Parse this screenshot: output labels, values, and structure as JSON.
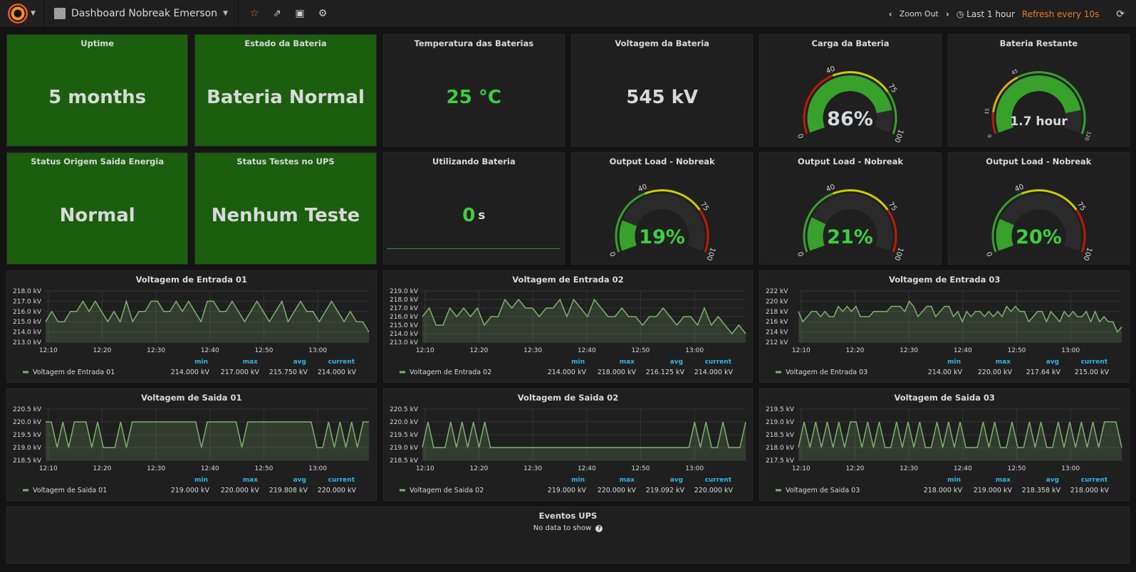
{
  "nav": {
    "dashboard_title": "Dashboard Nobreak Emerson",
    "zoom_out": "Zoom Out",
    "time_range": "Last 1 hour",
    "refresh": "Refresh every 10s"
  },
  "colors": {
    "green_bg": "#1b5e0e",
    "value_green": "#3ecf3e",
    "line": "#7eb26d",
    "red": "#bf1b00",
    "yellow": "#cccc00",
    "orange": "#e5ac0e",
    "accent": "#eb7b18"
  },
  "stats": [
    {
      "title": "Uptime",
      "value": "5 months"
    },
    {
      "title": "Estado da Bateria",
      "value": "Bateria Normal"
    },
    {
      "title": "Temperatura das Baterias",
      "value": "25 °C"
    },
    {
      "title": "Voltagem da Bateria",
      "value": "545 kV"
    },
    {
      "title": "Status Origem Saida Energia",
      "value": "Normal"
    },
    {
      "title": "Status Testes no UPS",
      "value": "Nenhum Teste"
    },
    {
      "title": "Utilizando Bateria",
      "value": "0",
      "suffix": "s"
    }
  ],
  "gauges": [
    {
      "title": "Carga da Bateria",
      "value": 86,
      "display": "86%",
      "min": 0,
      "max": 100,
      "thresholds": [
        40,
        75
      ],
      "thresh_labels": [
        "0",
        "40",
        "75",
        "100"
      ],
      "colors": [
        "#bf1b00",
        "#cccc00",
        "#37a12b"
      ],
      "text_color": "#d8d9da"
    },
    {
      "title": "Bateria Restante",
      "value": 1.7,
      "display": "1.7 hour",
      "min": 0,
      "max": 120,
      "thresholds": [
        15,
        45
      ],
      "thresh_labels": [
        "0",
        "15",
        "45",
        "120"
      ],
      "colors": [
        "#bf1b00",
        "#e5ac0e",
        "#37a12b"
      ],
      "text_color": "#d8d9da",
      "fill_fraction": 0.86
    },
    {
      "title": "Output Load - Nobreak",
      "value": 19,
      "display": "19%",
      "min": 0,
      "max": 100,
      "thresholds": [
        40,
        75
      ],
      "thresh_labels": [
        "0",
        "40",
        "75",
        "100"
      ],
      "colors": [
        "#37a12b",
        "#cccc00",
        "#bf1b00"
      ],
      "text_color": "#3ecf3e"
    },
    {
      "title": "Output Load - Nobreak",
      "value": 21,
      "display": "21%",
      "min": 0,
      "max": 100,
      "thresholds": [
        40,
        75
      ],
      "thresh_labels": [
        "0",
        "40",
        "75",
        "100"
      ],
      "colors": [
        "#37a12b",
        "#cccc00",
        "#bf1b00"
      ],
      "text_color": "#3ecf3e"
    },
    {
      "title": "Output Load - Nobreak",
      "value": 20,
      "display": "20%",
      "min": 0,
      "max": 100,
      "thresholds": [
        40,
        75
      ],
      "thresh_labels": [
        "0",
        "40",
        "75",
        "100"
      ],
      "colors": [
        "#37a12b",
        "#cccc00",
        "#bf1b00"
      ],
      "text_color": "#3ecf3e"
    }
  ],
  "chart_data": [
    {
      "type": "area",
      "title": "Voltagem de Entrada 01",
      "ylim": [
        213,
        218
      ],
      "yticks": [
        "213.0 kV",
        "214.0 kV",
        "215.0 kV",
        "216.0 kV",
        "217.0 kV",
        "218.0 kV"
      ],
      "xticks": [
        "12:10",
        "12:20",
        "12:30",
        "12:40",
        "12:50",
        "13:00"
      ],
      "series": [
        {
          "name": "Voltagem de Entrada 01",
          "values": [
            215,
            216,
            215,
            215,
            216,
            216,
            217,
            216,
            217,
            216,
            215,
            216,
            215,
            217,
            215,
            216,
            216,
            217,
            217,
            216,
            216,
            217,
            216,
            217,
            216,
            215,
            217,
            217,
            216,
            216,
            217,
            216,
            215,
            216,
            217,
            216,
            215,
            216,
            217,
            215,
            216,
            217,
            216,
            216,
            215,
            216,
            217,
            216,
            215,
            216,
            215,
            215,
            214
          ]
        }
      ],
      "legend": {
        "headers": [
          "min",
          "max",
          "avg",
          "current"
        ],
        "values": [
          "214.000 kV",
          "217.000 kV",
          "215.750 kV",
          "214.000 kV"
        ]
      }
    },
    {
      "type": "area",
      "title": "Voltagem de Entrada 02",
      "ylim": [
        213,
        219
      ],
      "yticks": [
        "213.0 kV",
        "214.0 kV",
        "215.0 kV",
        "216.0 kV",
        "217.0 kV",
        "218.0 kV",
        "219.0 kV"
      ],
      "xticks": [
        "12:10",
        "12:20",
        "12:30",
        "12:40",
        "12:50",
        "13:00"
      ],
      "series": [
        {
          "name": "Voltagem de Entrada 02",
          "values": [
            216,
            217,
            215,
            215,
            217,
            216,
            217,
            216,
            217,
            215,
            216,
            216,
            218,
            217,
            218,
            217,
            217,
            216,
            217,
            217,
            218,
            216,
            218,
            217,
            216,
            218,
            217,
            216,
            216,
            217,
            216,
            216,
            215,
            216,
            216,
            217,
            216,
            215,
            216,
            216,
            215,
            217,
            215,
            216,
            215,
            214,
            215,
            214
          ]
        }
      ],
      "legend": {
        "headers": [
          "min",
          "max",
          "avg",
          "current"
        ],
        "values": [
          "214.000 kV",
          "218.000 kV",
          "216.125 kV",
          "214.000 kV"
        ]
      }
    },
    {
      "type": "area",
      "title": "Voltagem de Entrada 03",
      "ylim": [
        212,
        222
      ],
      "yticks": [
        "212 kV",
        "214 kV",
        "216 kV",
        "218 kV",
        "220 kV",
        "222 kV"
      ],
      "xticks": [
        "12:10",
        "12:20",
        "12:30",
        "12:40",
        "12:50",
        "13:00"
      ],
      "series": [
        {
          "name": "Voltagem de Entrada 03",
          "values": [
            218,
            216,
            217,
            218,
            218,
            217,
            218,
            217,
            217,
            219,
            218,
            219,
            218,
            219,
            217,
            217,
            217,
            218,
            218,
            218,
            218,
            219,
            219,
            219,
            218,
            220,
            219,
            217,
            218,
            219,
            219,
            217,
            218,
            219,
            219,
            217,
            218,
            216,
            218,
            217,
            218,
            218,
            217,
            218,
            217,
            218,
            217,
            219,
            218,
            219,
            218,
            218,
            216,
            217,
            218,
            218,
            216,
            218,
            217,
            216,
            218,
            217,
            218,
            217,
            217,
            218,
            216,
            218,
            216,
            217,
            216,
            216,
            214,
            215
          ]
        }
      ],
      "legend": {
        "headers": [
          "min",
          "max",
          "avg",
          "current"
        ],
        "values": [
          "214.00 kV",
          "220.00 kV",
          "217.64 kV",
          "215.00 kV"
        ]
      }
    },
    {
      "type": "area",
      "title": "Voltagem de Saida 01",
      "ylim": [
        218.5,
        220.5
      ],
      "yticks": [
        "218.5 kV",
        "219.0 kV",
        "219.5 kV",
        "220.0 kV",
        "220.5 kV"
      ],
      "xticks": [
        "12:10",
        "12:20",
        "12:30",
        "12:40",
        "12:50",
        "13:00"
      ],
      "series": [
        {
          "name": "Voltagem de Saida 01",
          "values": [
            220,
            220,
            219,
            220,
            219,
            220,
            220,
            220,
            219,
            220,
            219,
            219,
            219,
            220,
            219,
            220,
            220,
            220,
            220,
            220,
            220,
            220,
            220,
            220,
            220,
            220,
            220,
            219,
            220,
            220,
            220,
            220,
            220,
            220,
            219,
            220,
            220,
            220,
            220,
            220,
            220,
            220,
            220,
            220,
            220,
            220,
            220,
            219,
            219,
            220,
            219,
            220,
            219,
            220,
            219,
            220,
            220
          ]
        }
      ],
      "legend": {
        "headers": [
          "min",
          "max",
          "avg",
          "current"
        ],
        "values": [
          "219.000 kV",
          "220.000 kV",
          "219.808 kV",
          "220.000 kV"
        ]
      }
    },
    {
      "type": "area",
      "title": "Voltagem de Saida 02",
      "ylim": [
        218.5,
        220.5
      ],
      "yticks": [
        "218.5 kV",
        "219.0 kV",
        "219.5 kV",
        "220.0 kV",
        "220.5 kV"
      ],
      "xticks": [
        "12:10",
        "12:20",
        "12:30",
        "12:40",
        "12:50",
        "13:00"
      ],
      "series": [
        {
          "name": "Voltagem de Saida 02",
          "values": [
            219,
            220,
            219,
            219,
            219,
            220,
            219,
            220,
            219,
            220,
            219,
            220,
            219,
            219,
            219,
            219,
            219,
            219,
            219,
            219,
            219,
            219,
            219,
            219,
            219,
            219,
            219,
            219,
            219,
            219,
            219,
            219,
            219,
            219,
            219,
            219,
            219,
            219,
            219,
            219,
            219,
            219,
            219,
            219,
            219,
            219,
            219,
            219,
            220,
            219,
            220,
            219,
            219,
            220,
            219,
            219,
            219,
            220
          ]
        }
      ],
      "legend": {
        "headers": [
          "min",
          "max",
          "avg",
          "current"
        ],
        "values": [
          "219.000 kV",
          "220.000 kV",
          "219.092 kV",
          "220.000 kV"
        ]
      }
    },
    {
      "type": "area",
      "title": "Voltagem de Saida 03",
      "ylim": [
        217.5,
        219.5
      ],
      "yticks": [
        "217.5 kV",
        "218.0 kV",
        "218.5 kV",
        "219.0 kV",
        "219.5 kV"
      ],
      "xticks": [
        "12:10",
        "12:20",
        "12:30",
        "12:40",
        "12:50",
        "13:00"
      ],
      "series": [
        {
          "name": "Voltagem de Saida 03",
          "values": [
            218,
            219,
            218,
            219,
            218,
            219,
            218,
            219,
            218,
            219,
            219,
            218,
            219,
            218,
            219,
            218,
            218,
            219,
            218,
            219,
            218,
            219,
            218,
            218,
            219,
            218,
            219,
            218,
            219,
            218,
            218,
            218,
            219,
            218,
            219,
            218,
            218,
            219,
            218,
            218,
            219,
            218,
            219,
            218,
            218,
            219,
            218,
            219,
            218,
            219,
            218,
            219,
            218,
            219,
            219,
            219,
            218
          ]
        }
      ],
      "legend": {
        "headers": [
          "min",
          "max",
          "avg",
          "current"
        ],
        "values": [
          "218.000 kV",
          "219.000 kV",
          "218.358 kV",
          "218.000 kV"
        ]
      }
    }
  ],
  "events": {
    "title": "Eventos UPS",
    "empty": "No data to show",
    "help": "?"
  }
}
